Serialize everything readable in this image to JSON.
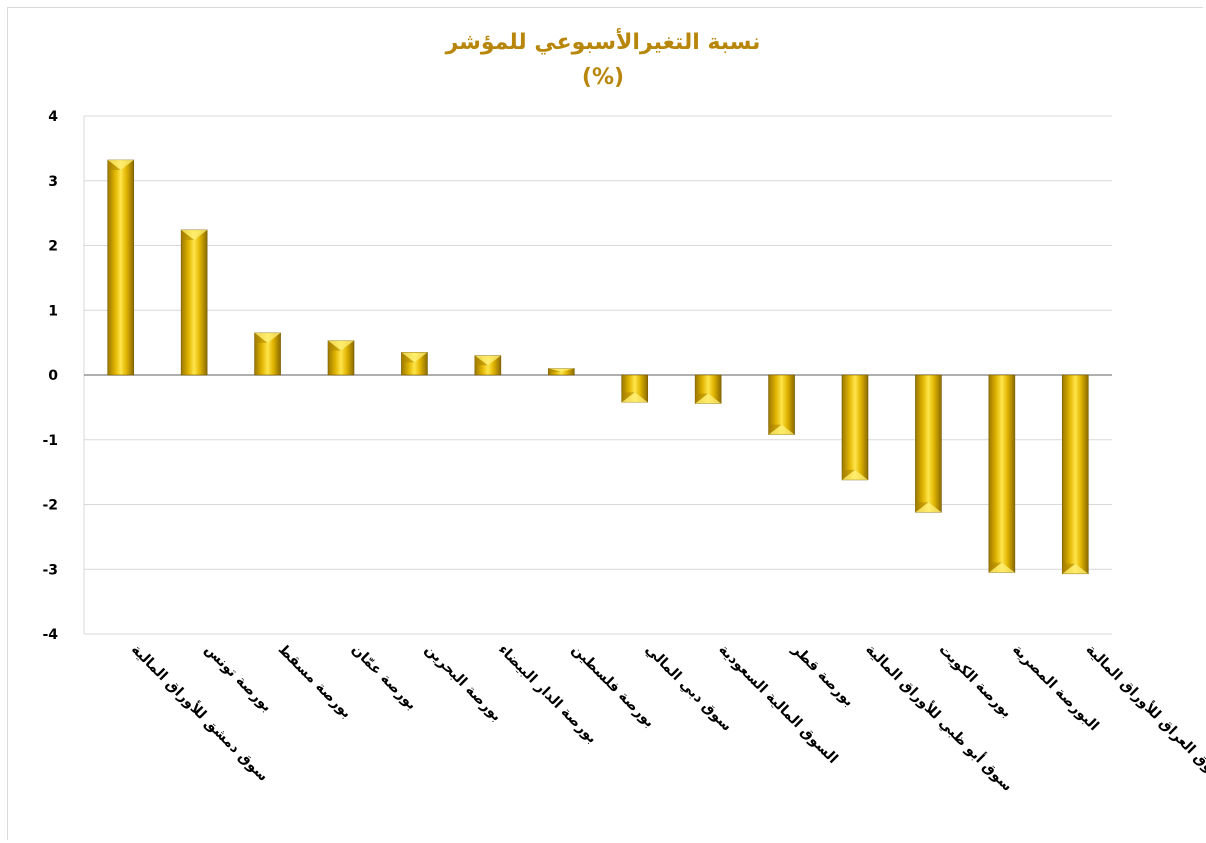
{
  "chart_data": {
    "type": "bar",
    "title": [
      "نسبة التغيرالأسبوعي للمؤشر",
      "(%)"
    ],
    "xlabel": "",
    "ylabel": "",
    "ylim": [
      -4,
      4
    ],
    "y_ticks": [
      "4",
      "3",
      "2",
      "1",
      "0",
      "-1",
      "-2",
      "-3",
      "-4"
    ],
    "grid": true,
    "legend": "none",
    "categories": [
      "سوق دمشق للأوراق المالية",
      "بورصة تونس",
      "بورصة مسقط",
      "بورصة عمّان",
      "بورصة البحرين",
      "بورصة الدار البيضاء",
      "بورصة فلسطين",
      "سوق دبي المالي",
      "السوق المالية السعودية",
      "بورصة قطر",
      "سوق أبو ظبي للأوراق المالية",
      "بورصة الكويت",
      "البورصة المصرية",
      "سوق العراق للأوراق المالية"
    ],
    "values": [
      3.32,
      2.24,
      0.65,
      0.53,
      0.35,
      0.3,
      0.1,
      -0.42,
      -0.44,
      -0.92,
      -1.62,
      -2.12,
      -3.05,
      -3.07
    ],
    "colors": {
      "bar_light": "#ffe84d",
      "bar_mid": "#d4a800",
      "bar_dark": "#8a6a00",
      "title": "#b8860b",
      "grid": "#d9d9d9",
      "axis": "#7f7f7f"
    }
  }
}
